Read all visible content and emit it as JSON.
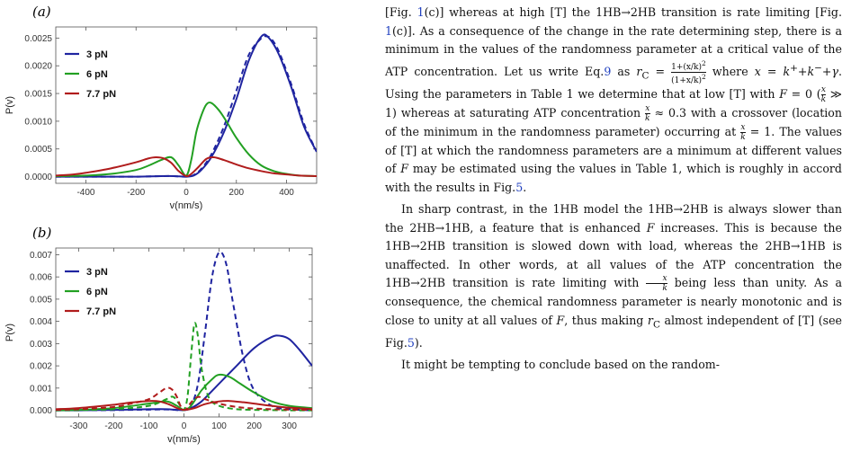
{
  "panel_a_label": "(a)",
  "panel_b_label": "(b)",
  "chart_data": [
    {
      "type": "line",
      "xlabel": "v(nm/s)",
      "ylabel": "P(v)",
      "xlim": [
        -520,
        520
      ],
      "ylim": [
        -0.00012,
        0.0027
      ],
      "xticks": [
        -400,
        -200,
        0,
        200,
        400
      ],
      "yticks": [
        0,
        0.0005,
        0.001,
        0.0015,
        0.002,
        0.0025
      ],
      "ytick_labels": [
        "0.0000",
        "0.0005",
        "0.0010",
        "0.0015",
        "0.0020",
        "0.0025"
      ],
      "legend_placement": "left",
      "series": [
        {
          "name": "3 pN",
          "color": "#1f24a0",
          "style": "solid",
          "x": [
            -520,
            -400,
            -300,
            -200,
            -100,
            -50,
            0,
            30,
            60,
            100,
            150,
            200,
            250,
            300,
            330,
            370,
            420,
            470,
            520
          ],
          "y": [
            0,
            0,
            0,
            0,
            1e-05,
            1e-05,
            0,
            2e-05,
            0.00012,
            0.00035,
            0.0008,
            0.0014,
            0.0021,
            0.00253,
            0.0025,
            0.0022,
            0.0016,
            0.0009,
            0.00045
          ]
        },
        {
          "name": "3 pN",
          "color": "#1f24a0",
          "style": "dashed",
          "x": [
            -520,
            -400,
            -300,
            -200,
            -100,
            -50,
            0,
            30,
            60,
            100,
            150,
            200,
            250,
            300,
            320,
            340,
            370,
            420,
            470,
            520
          ],
          "y": [
            0,
            0,
            0,
            0,
            1e-05,
            1e-05,
            0,
            3e-05,
            0.00014,
            0.0004,
            0.0009,
            0.00155,
            0.0022,
            0.0025,
            0.00253,
            0.00248,
            0.00225,
            0.00165,
            0.00095,
            0.00045
          ]
        },
        {
          "name": "6 pN",
          "color": "#22a022",
          "style": "solid",
          "x": [
            -520,
            -400,
            -300,
            -200,
            -150,
            -100,
            -60,
            -30,
            0,
            20,
            40,
            60,
            80,
            100,
            130,
            160,
            200,
            250,
            300,
            350,
            400,
            450,
            520
          ],
          "y": [
            1e-05,
            2e-05,
            5e-05,
            0.00012,
            0.0002,
            0.0003,
            0.00035,
            0.0002,
            2e-05,
            0.0003,
            0.0008,
            0.0011,
            0.0013,
            0.00133,
            0.0012,
            0.001,
            0.0007,
            0.0004,
            0.0002,
            0.0001,
            5e-05,
            2e-05,
            1e-05
          ]
        },
        {
          "name": "7.7 pN",
          "color": "#b01c1c",
          "style": "solid",
          "x": [
            -520,
            -450,
            -400,
            -300,
            -200,
            -150,
            -120,
            -90,
            -60,
            -30,
            0,
            20,
            50,
            80,
            110,
            150,
            200,
            250,
            300,
            350,
            400,
            450,
            520
          ],
          "y": [
            2e-05,
            4e-05,
            7e-05,
            0.00015,
            0.00026,
            0.00033,
            0.00035,
            0.00033,
            0.00025,
            0.0001,
            1e-05,
            5e-05,
            0.00018,
            0.00032,
            0.00035,
            0.0003,
            0.00022,
            0.00015,
            0.0001,
            6e-05,
            4e-05,
            2e-05,
            1e-05
          ]
        }
      ]
    },
    {
      "type": "line",
      "xlabel": "v(nm/s)",
      "ylabel": "P(v)",
      "xlim": [
        -365,
        365
      ],
      "ylim": [
        -0.0003,
        0.0073
      ],
      "xticks": [
        -300,
        -200,
        -100,
        0,
        100,
        200,
        300
      ],
      "yticks": [
        0,
        0.001,
        0.002,
        0.003,
        0.004,
        0.005,
        0.006,
        0.007
      ],
      "ytick_labels": [
        "0.000",
        "0.001",
        "0.002",
        "0.003",
        "0.004",
        "0.005",
        "0.006",
        "0.007"
      ],
      "legend_placement": "left",
      "series": [
        {
          "name": "3 pN",
          "color": "#1f24a0",
          "style": "solid",
          "x": [
            -365,
            -300,
            -200,
            -100,
            -50,
            0,
            20,
            50,
            100,
            150,
            200,
            250,
            275,
            300,
            330,
            365
          ],
          "y": [
            0,
            0,
            2e-05,
            5e-05,
            5e-05,
            1e-05,
            0.0001,
            0.0004,
            0.0012,
            0.002,
            0.0028,
            0.0033,
            0.00335,
            0.0032,
            0.0027,
            0.002
          ]
        },
        {
          "name": "3 pN",
          "color": "#1f24a0",
          "style": "dashed",
          "x": [
            -365,
            -300,
            -200,
            -100,
            -50,
            0,
            20,
            40,
            60,
            80,
            100,
            120,
            140,
            170,
            200,
            250,
            300,
            365
          ],
          "y": [
            0,
            0,
            1e-05,
            3e-05,
            4e-05,
            1e-05,
            0.0002,
            0.0012,
            0.0035,
            0.006,
            0.0071,
            0.0066,
            0.0048,
            0.0023,
            0.0009,
            0.0002,
            5e-05,
            0
          ]
        },
        {
          "name": "6 pN",
          "color": "#22a022",
          "style": "solid",
          "x": [
            -365,
            -300,
            -200,
            -100,
            -50,
            -20,
            0,
            20,
            50,
            80,
            100,
            130,
            160,
            200,
            250,
            300,
            365
          ],
          "y": [
            0,
            2e-05,
            0.0001,
            0.0003,
            0.0004,
            0.0002,
            2e-05,
            0.0002,
            0.0009,
            0.0014,
            0.0016,
            0.0015,
            0.0012,
            0.0008,
            0.0004,
            0.0002,
            0.0001
          ]
        },
        {
          "name": "6 pN",
          "color": "#22a022",
          "style": "dashed",
          "x": [
            -365,
            -300,
            -200,
            -100,
            -50,
            -30,
            -10,
            0,
            10,
            20,
            30,
            40,
            50,
            70,
            100,
            150,
            200,
            300,
            365
          ],
          "y": [
            0,
            1e-05,
            5e-05,
            0.0002,
            0.0005,
            0.0006,
            0.0002,
            2e-05,
            0.0006,
            0.0024,
            0.0039,
            0.0033,
            0.0019,
            0.0006,
            0.0002,
            5e-05,
            2e-05,
            0,
            0
          ]
        },
        {
          "name": "7.7 pN",
          "color": "#b01c1c",
          "style": "solid",
          "x": [
            -365,
            -300,
            -200,
            -150,
            -100,
            -70,
            -40,
            -20,
            0,
            30,
            60,
            100,
            130,
            170,
            200,
            250,
            300,
            365
          ],
          "y": [
            5e-05,
            0.0001,
            0.00025,
            0.00035,
            0.00042,
            0.0004,
            0.00025,
            0.0001,
            2e-05,
            0.0001,
            0.00028,
            0.0004,
            0.00042,
            0.00036,
            0.0003,
            0.0002,
            0.00012,
            6e-05
          ]
        },
        {
          "name": "7.7 pN",
          "color": "#b01c1c",
          "style": "dashed",
          "x": [
            -365,
            -300,
            -200,
            -150,
            -100,
            -70,
            -50,
            -35,
            -20,
            -10,
            0,
            10,
            20,
            40,
            60,
            100,
            150,
            200,
            250,
            300,
            365
          ],
          "y": [
            2e-05,
            5e-05,
            0.00015,
            0.0003,
            0.0005,
            0.0008,
            0.001,
            0.00095,
            0.0006,
            0.0002,
            2e-05,
            0.0001,
            0.00035,
            0.0006,
            0.0005,
            0.0003,
            0.00015,
            8e-05,
            5e-05,
            3e-05,
            2e-05
          ]
        }
      ]
    }
  ],
  "text": {
    "p1": [
      "[Fig. ",
      "1",
      "(c)] whereas at high [T] the 1HB→2HB transition is rate limiting [Fig. ",
      "1",
      "(c)]. As a consequence of the change in the rate determining step, there is a minimum in the values of the randomness parameter at a critical value of the ATP concentration. Let us write Eq.",
      "9",
      " as ",
      "r",
      "C",
      " = ",
      "1+(x/k)",
      "2",
      "(1+x/k)",
      "2",
      " where ",
      "x = k",
      "+",
      "+k",
      "−",
      "+γ",
      ". Using the parameters in Table 1 we determine that at low [T] with ",
      "F",
      " = 0 (",
      "x",
      "k",
      " ≫ 1) whereas at saturating ATP concentration ",
      "x",
      "k",
      " ≈ 0.3 with a crossover (location of the minimum in the randomness parameter) occurring at ",
      "x",
      "k",
      " = 1. The values of [T] at which the randomness parameters are a minimum at different values of ",
      "F",
      " may be estimated using the values in Table 1, which is roughly in accord with the results in Fig.",
      "5",
      "."
    ],
    "p2": [
      "In sharp contrast, in the 1HB model the 1HB→2HB is always slower than the 2HB→1HB, a feature that is enhanced ",
      "F",
      " increases. This is because the 1HB→2HB transition is slowed down with load, whereas the 2HB→1HB is unaffected. In other words, at all values of the ATP concentration the 1HB→2HB transition is rate limiting with ",
      "x",
      "k",
      " being less than unity. As a consequence, the chemical randomness parameter is nearly monotonic and is close to unity at all values of ",
      "F",
      ", thus making ",
      "r",
      "C",
      " almost independent of [T] (see Fig.",
      "5",
      ")."
    ],
    "p3": "It might be tempting to conclude based on the random-"
  }
}
